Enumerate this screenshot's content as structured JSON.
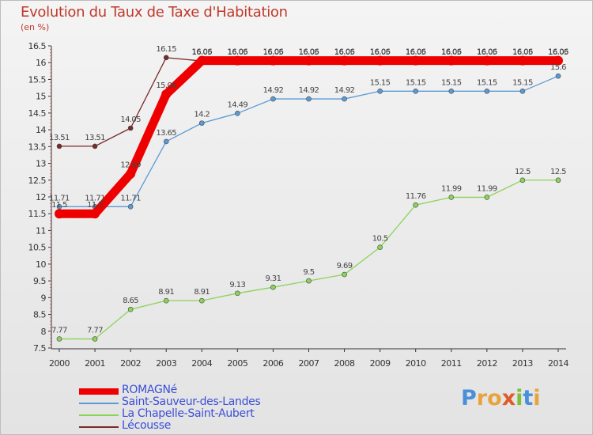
{
  "chart_data": {
    "type": "line",
    "title": "Evolution du Taux de Taxe d'Habitation",
    "subtitle": "(en %)",
    "x": [
      "2000",
      "2001",
      "2002",
      "2003",
      "2004",
      "2005",
      "2006",
      "2007",
      "2008",
      "2009",
      "2010",
      "2011",
      "2012",
      "2013",
      "2014"
    ],
    "ylim": [
      7.5,
      16.5
    ],
    "yticks": [
      "7.5",
      "8",
      "8.5",
      "9",
      "9.5",
      "10",
      "10.5",
      "11",
      "11.5",
      "12",
      "12.5",
      "13",
      "13.5",
      "14",
      "14.5",
      "15",
      "15.5",
      "16",
      "16.5"
    ],
    "grid": false,
    "legend_position": "bottom-left",
    "series": [
      {
        "name": "ROMAGNé",
        "color": "#ee0000",
        "values": [
          11.5,
          11.5,
          12.69,
          15.06,
          16.06,
          16.06,
          16.06,
          16.06,
          16.06,
          16.06,
          16.06,
          16.06,
          16.06,
          16.06,
          16.06
        ],
        "labels": [
          "11.5",
          "11.5",
          "12.69",
          "15.06",
          "16.06",
          "16.06",
          "16.06",
          "16.06",
          "16.06",
          "16.06",
          "16.06",
          "16.06",
          "16.06",
          "16.06",
          "16.06"
        ]
      },
      {
        "name": "Saint-Sauveur-des-Landes",
        "color": "#5b9bd5",
        "values": [
          11.71,
          11.71,
          11.71,
          13.65,
          14.2,
          14.49,
          14.92,
          14.92,
          14.92,
          15.15,
          15.15,
          15.15,
          15.15,
          15.15,
          15.6
        ],
        "labels": [
          "11.71",
          "11.71",
          "11.71",
          "13.65",
          "14.2",
          "14.49",
          "14.92",
          "14.92",
          "14.92",
          "15.15",
          "15.15",
          "15.15",
          "15.15",
          "15.15",
          "15.6"
        ]
      },
      {
        "name": "La Chapelle-Saint-Aubert",
        "color": "#8cd35a",
        "values": [
          7.77,
          7.77,
          8.65,
          8.91,
          8.91,
          9.13,
          9.31,
          9.5,
          9.69,
          10.5,
          11.76,
          11.99,
          11.99,
          12.5,
          12.5
        ],
        "labels": [
          "7.77",
          "7.77",
          "8.65",
          "8.91",
          "8.91",
          "9.13",
          "9.31",
          "9.5",
          "9.69",
          "10.5",
          "11.76",
          "11.99",
          "11.99",
          "12.5",
          "12.5"
        ]
      },
      {
        "name": "Lécousse",
        "color": "#7a2a2a",
        "values": [
          13.51,
          13.51,
          14.05,
          16.15,
          16.05,
          16.05,
          16.05,
          16.05,
          16.05,
          16.05,
          16.05,
          16.05,
          16.05,
          16.05,
          16.05
        ],
        "labels": [
          "13.51",
          "13.51",
          "14.05",
          "16.15",
          "16.05",
          "16.05",
          "16.05",
          "16.05",
          "16.05",
          "16.05",
          "16.05",
          "16.05",
          "16.05",
          "16.05",
          "16.05"
        ]
      }
    ]
  },
  "logo": {
    "letters": [
      "P",
      "r",
      "o",
      "x",
      "i",
      "t",
      "i"
    ],
    "colors": [
      "#4a8fd9",
      "#e8a33d",
      "#e8a33d",
      "#e05a2b",
      "#7bbf3a",
      "#4a8fd9",
      "#e8a33d"
    ]
  }
}
